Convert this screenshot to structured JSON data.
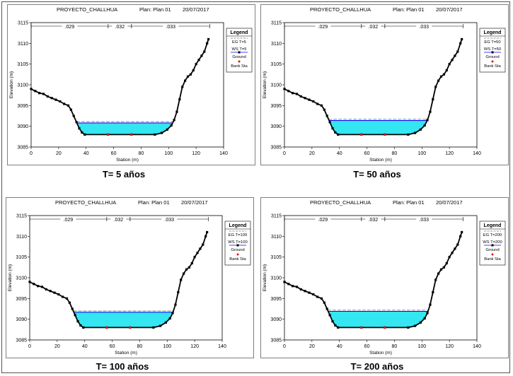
{
  "colors": {
    "water": "#33e6f2",
    "water_edge": "#0000ff",
    "ground": "#000000",
    "bank": "#d11a1a",
    "eg": "#999999",
    "frame": "#555555"
  },
  "chart_data": [
    {
      "type": "area",
      "title": "PROYECTO_CHALLHUA",
      "plan": "Plan: Plan 01",
      "date": "20/07/2017",
      "xlabel": "Station (m)",
      "ylabel": "Elevation (m)",
      "xlim": [
        0,
        140
      ],
      "ylim": [
        3085,
        3115
      ],
      "xticks": [
        0,
        20,
        40,
        60,
        80,
        100,
        120,
        140
      ],
      "yticks": [
        3085,
        3090,
        3095,
        3100,
        3105,
        3110,
        3115
      ],
      "manning": [
        {
          "label": ".029",
          "from": 0,
          "to": 56
        },
        {
          "label": ".032",
          "from": 56,
          "to": 73
        },
        {
          "label": ".033",
          "from": 73,
          "to": 130
        }
      ],
      "legend_title": "Legend",
      "legend": [
        "EG T=5",
        "WS T=5",
        "Ground",
        "Bank Sta"
      ],
      "caption": "T= 5 años",
      "ws": 3090.8,
      "eg": 3091.1,
      "ground": [
        [
          0,
          3099
        ],
        [
          3,
          3098.5
        ],
        [
          6,
          3098
        ],
        [
          9,
          3097.8
        ],
        [
          12,
          3097.2
        ],
        [
          15,
          3096.8
        ],
        [
          18,
          3096.4
        ],
        [
          21,
          3096
        ],
        [
          24,
          3095.4
        ],
        [
          27,
          3095
        ],
        [
          29,
          3094
        ],
        [
          31,
          3092.5
        ],
        [
          33,
          3091
        ],
        [
          35,
          3089.5
        ],
        [
          37,
          3088.5
        ],
        [
          39,
          3088
        ],
        [
          56,
          3088
        ],
        [
          73,
          3088
        ],
        [
          90,
          3088
        ],
        [
          95,
          3088.4
        ],
        [
          99,
          3089.2
        ],
        [
          102,
          3090.2
        ],
        [
          104,
          3091.5
        ],
        [
          106,
          3093.5
        ],
        [
          108,
          3096.5
        ],
        [
          110,
          3099.5
        ],
        [
          112,
          3101
        ],
        [
          114,
          3102
        ],
        [
          116,
          3102.5
        ],
        [
          118,
          3103.5
        ],
        [
          120,
          3105
        ],
        [
          122,
          3106
        ],
        [
          124,
          3107
        ],
        [
          126,
          3108
        ],
        [
          128,
          3110
        ],
        [
          129,
          3111
        ]
      ],
      "bank_stations": [
        [
          56,
          3088
        ],
        [
          73,
          3088
        ]
      ]
    },
    {
      "type": "area",
      "title": "PROYECTO_CHALLHUA",
      "plan": "Plan: Plan 01",
      "date": "20/07/2017",
      "xlabel": "Station (m)",
      "ylabel": "Elevation (m)",
      "xlim": [
        0,
        140
      ],
      "ylim": [
        3085,
        3115
      ],
      "xticks": [
        0,
        20,
        40,
        60,
        80,
        100,
        120,
        140
      ],
      "yticks": [
        3085,
        3090,
        3095,
        3100,
        3105,
        3110,
        3115
      ],
      "manning": [
        {
          "label": ".029",
          "from": 0,
          "to": 56
        },
        {
          "label": ".032",
          "from": 56,
          "to": 73
        },
        {
          "label": ".033",
          "from": 73,
          "to": 130
        }
      ],
      "legend_title": "Legend",
      "legend": [
        "EG T=50",
        "WS T=50",
        "Ground",
        "Bank Sta"
      ],
      "caption": "T= 50 años",
      "ws": 3091.4,
      "eg": 3091.7,
      "ground": [
        [
          0,
          3099
        ],
        [
          3,
          3098.5
        ],
        [
          6,
          3098
        ],
        [
          9,
          3097.8
        ],
        [
          12,
          3097.2
        ],
        [
          15,
          3096.8
        ],
        [
          18,
          3096.4
        ],
        [
          21,
          3096
        ],
        [
          24,
          3095.4
        ],
        [
          27,
          3095
        ],
        [
          29,
          3094
        ],
        [
          31,
          3092.5
        ],
        [
          33,
          3091
        ],
        [
          35,
          3089.5
        ],
        [
          37,
          3088.5
        ],
        [
          39,
          3088
        ],
        [
          56,
          3088
        ],
        [
          73,
          3088
        ],
        [
          90,
          3088
        ],
        [
          95,
          3088.4
        ],
        [
          99,
          3089.2
        ],
        [
          102,
          3090.2
        ],
        [
          104,
          3091.5
        ],
        [
          106,
          3093.5
        ],
        [
          108,
          3096.5
        ],
        [
          110,
          3099.5
        ],
        [
          112,
          3101
        ],
        [
          114,
          3102
        ],
        [
          116,
          3102.5
        ],
        [
          118,
          3103.5
        ],
        [
          120,
          3105
        ],
        [
          122,
          3106
        ],
        [
          124,
          3107
        ],
        [
          126,
          3108
        ],
        [
          128,
          3110
        ],
        [
          129,
          3111
        ]
      ],
      "bank_stations": [
        [
          56,
          3088
        ],
        [
          73,
          3088
        ]
      ]
    },
    {
      "type": "area",
      "title": "PROYECTO_CHALLHUA",
      "plan": "Plan: Plan 01",
      "date": "20/07/2017",
      "xlabel": "Station (m)",
      "ylabel": "Elevation (m)",
      "xlim": [
        0,
        140
      ],
      "ylim": [
        3085,
        3115
      ],
      "xticks": [
        0,
        20,
        40,
        60,
        80,
        100,
        120,
        140
      ],
      "yticks": [
        3085,
        3090,
        3095,
        3100,
        3105,
        3110,
        3115
      ],
      "manning": [
        {
          "label": ".029",
          "from": 0,
          "to": 56
        },
        {
          "label": ".032",
          "from": 56,
          "to": 73
        },
        {
          "label": ".033",
          "from": 73,
          "to": 130
        }
      ],
      "legend_title": "Legend",
      "legend": [
        "EG T=100",
        "WS T=100",
        "Ground",
        "Bank Sta"
      ],
      "caption": "T= 100 años",
      "ws": 3091.7,
      "eg": 3092.0,
      "ground": [
        [
          0,
          3099
        ],
        [
          3,
          3098.5
        ],
        [
          6,
          3098
        ],
        [
          9,
          3097.8
        ],
        [
          12,
          3097.2
        ],
        [
          15,
          3096.8
        ],
        [
          18,
          3096.4
        ],
        [
          21,
          3096
        ],
        [
          24,
          3095.4
        ],
        [
          27,
          3095
        ],
        [
          29,
          3094
        ],
        [
          31,
          3092.5
        ],
        [
          33,
          3091
        ],
        [
          35,
          3089.5
        ],
        [
          37,
          3088.5
        ],
        [
          39,
          3088
        ],
        [
          56,
          3088
        ],
        [
          73,
          3088
        ],
        [
          90,
          3088
        ],
        [
          95,
          3088.4
        ],
        [
          99,
          3089.2
        ],
        [
          102,
          3090.2
        ],
        [
          104,
          3091.5
        ],
        [
          106,
          3093.5
        ],
        [
          108,
          3096.5
        ],
        [
          110,
          3099.5
        ],
        [
          112,
          3101
        ],
        [
          114,
          3102
        ],
        [
          116,
          3102.5
        ],
        [
          118,
          3103.5
        ],
        [
          120,
          3105
        ],
        [
          122,
          3106
        ],
        [
          124,
          3107
        ],
        [
          126,
          3108
        ],
        [
          128,
          3110
        ],
        [
          129,
          3111
        ]
      ],
      "bank_stations": [
        [
          56,
          3088
        ],
        [
          73,
          3088
        ]
      ]
    },
    {
      "type": "area",
      "title": "PROYECTO_CHALLHUA",
      "plan": "Plan: Plan 01",
      "date": "20/07/2017",
      "xlabel": "Station (m)",
      "ylabel": "Elevation (m)",
      "xlim": [
        0,
        140
      ],
      "ylim": [
        3085,
        3115
      ],
      "xticks": [
        0,
        20,
        40,
        60,
        80,
        100,
        120,
        140
      ],
      "yticks": [
        3085,
        3090,
        3095,
        3100,
        3105,
        3110,
        3115
      ],
      "manning": [
        {
          "label": ".029",
          "from": 0,
          "to": 56
        },
        {
          "label": ".032",
          "from": 56,
          "to": 73
        },
        {
          "label": ".033",
          "from": 73,
          "to": 130
        }
      ],
      "legend_title": "Legend",
      "legend": [
        "EG T=200",
        "WS T=200",
        "Ground",
        "Bank Sta"
      ],
      "caption": "T= 200 años",
      "ws": 3091.9,
      "eg": 3092.2,
      "ground": [
        [
          0,
          3099
        ],
        [
          3,
          3098.5
        ],
        [
          6,
          3098
        ],
        [
          9,
          3097.8
        ],
        [
          12,
          3097.2
        ],
        [
          15,
          3096.8
        ],
        [
          18,
          3096.4
        ],
        [
          21,
          3096
        ],
        [
          24,
          3095.4
        ],
        [
          27,
          3095
        ],
        [
          29,
          3094
        ],
        [
          31,
          3092.5
        ],
        [
          33,
          3091
        ],
        [
          35,
          3089.5
        ],
        [
          37,
          3088.5
        ],
        [
          39,
          3088
        ],
        [
          56,
          3088
        ],
        [
          73,
          3088
        ],
        [
          90,
          3088
        ],
        [
          95,
          3088.4
        ],
        [
          99,
          3089.2
        ],
        [
          102,
          3090.2
        ],
        [
          104,
          3091.5
        ],
        [
          106,
          3093.5
        ],
        [
          108,
          3096.5
        ],
        [
          110,
          3099.5
        ],
        [
          112,
          3101
        ],
        [
          114,
          3102
        ],
        [
          116,
          3102.5
        ],
        [
          118,
          3103.5
        ],
        [
          120,
          3105
        ],
        [
          122,
          3106
        ],
        [
          124,
          3107
        ],
        [
          126,
          3108
        ],
        [
          128,
          3110
        ],
        [
          129,
          3111
        ]
      ],
      "bank_stations": [
        [
          56,
          3088
        ],
        [
          73,
          3088
        ]
      ]
    }
  ]
}
